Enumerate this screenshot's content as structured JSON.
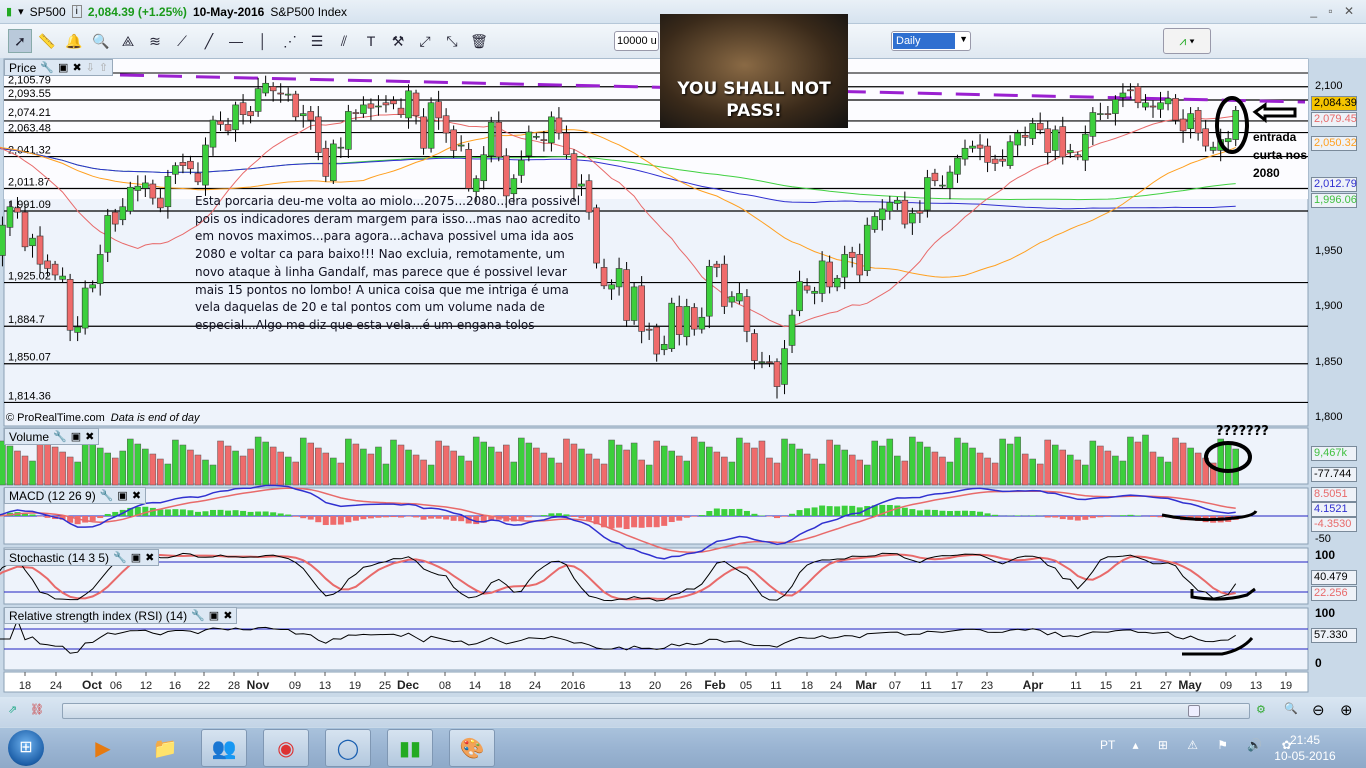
{
  "header": {
    "symbol": "SP500",
    "last_change": "2,084.39 (+1.25%)",
    "date": "10-May-2016",
    "name": "S&P500 Index"
  },
  "toolbar": {
    "tools": [
      "pointer-icon",
      "ruler-icon",
      "alarm-bell-icon",
      "zoom-icon",
      "fibonacci-fan-icon",
      "channel-icon",
      "segment-icon",
      "line-icon",
      "horizontal-line-icon",
      "vertical-line-icon",
      "fan-icon",
      "fibonacci-retracement-icon",
      "trend-channel-icon",
      "text-icon",
      "tools-icon",
      "point-line-icon",
      "parallel-icon",
      "trash-icon"
    ],
    "quantity": "10000 u",
    "timeframe": "Daily",
    "indicator_button": "indicators"
  },
  "meme": {
    "text_line1": "YOU SHALL NOT",
    "text_line2": "PASS!"
  },
  "annotation": {
    "main": "Esta porcaria deu-me volta ao miolo...2075...2080...era possivel pois os indicadores deram margem para isso...mas nao acredito em novos maximos...para agora...achava possivel uma ida aos 2080 e voltar ca para baixo!!! Nao excluia, remotamente, um novo ataque à linha Gandalf, mas parece que é possivel levar mais 15 pontos no lombo! A unica coisa que me intriga é uma vela daquelas de 20 e tal pontos com um volume nada de especial...Algo me diz que esta vela...é um engana tolos",
    "side": "entrada curta nos 2080",
    "volume_mark": "???????"
  },
  "panes": {
    "price": {
      "title": "Price",
      "copyright": "© ProRealTime.com",
      "eod": "Data is end of day",
      "levels": [
        "2,105.79",
        "2,093.55",
        "2,074.21",
        "2,063.48",
        "2,041.32",
        "2,011.87",
        "1,991.09",
        "1,925.02",
        "1,884.7",
        "1,850.07",
        "1,814.36"
      ],
      "axis": [
        "2,100",
        "1,950",
        "1,900",
        "1,850",
        "1,800"
      ],
      "badges": {
        "last": "2,084.39",
        "ma_red": "2,079.45",
        "ma_orange": "2,050.32",
        "ma_blue": "2,012.79",
        "ma_green": "1,996.06"
      }
    },
    "volume": {
      "title": "Volume",
      "last": "9,467k",
      "other": "-77.744"
    },
    "macd": {
      "title": "MACD (12 26 9)",
      "v1": "8.5051",
      "v2": "4.1521",
      "v3": "-4.3530",
      "axis": "-50"
    },
    "stochastic": {
      "title": "Stochastic (14 3 5)",
      "top": "100",
      "k": "40.479",
      "d": "22.256"
    },
    "rsi": {
      "title": "Relative strength index (RSI) (14)",
      "top": "100",
      "value": "57.330",
      "bottom": "0"
    }
  },
  "colors": {
    "up": "#3ccf3c",
    "down": "#ef6b6b",
    "ma_red": "#e86a6a",
    "ma_orange": "#ffa020",
    "ma_blue": "#3030d0",
    "ma_green": "#40d040",
    "trendline": "#9a20d0"
  },
  "chart_data": {
    "type": "candlestick",
    "first_date": "2015-09-14",
    "last_date": "2016-05-10",
    "ylim": [
      1800,
      2110
    ],
    "closes": [
      1953,
      1978,
      1995,
      1990,
      1958,
      1966,
      1942,
      1938,
      1932,
      1931,
      1881,
      1884,
      1920,
      1923,
      1951,
      1987,
      1979,
      1995,
      2013,
      2014,
      2017,
      2003,
      1994,
      2023,
      2033,
      2033,
      2030,
      2018,
      2052,
      2075,
      2071,
      2065,
      2089,
      2080,
      2079,
      2104,
      2109,
      2102,
      2099,
      2099,
      2078,
      2081,
      2075,
      2045,
      2023,
      2053,
      2050,
      2083,
      2081,
      2089,
      2086,
      2088,
      2089,
      2090,
      2080,
      2102,
      2079,
      2049,
      2091,
      2077,
      2063,
      2047,
      2052,
      2012,
      2021,
      2043,
      2073,
      2041,
      2005,
      2021,
      2038,
      2064,
      2060,
      2056,
      2078,
      2063,
      2043,
      2012,
      2016,
      1990,
      1943,
      1922,
      1923,
      1938,
      1890,
      1921,
      1880,
      1881,
      1859,
      1868,
      1906,
      1877,
      1903,
      1882,
      1893,
      1940,
      1939,
      1903,
      1912,
      1915,
      1880,
      1853,
      1852,
      1851,
      1829,
      1864,
      1895,
      1926,
      1918,
      1917,
      1945,
      1921,
      1929,
      1951,
      1948,
      1932,
      1978,
      1986,
      1993,
      1999,
      2001,
      1979,
      1989,
      1989,
      2022,
      2019,
      2015,
      2027,
      2040,
      2049,
      2051,
      2049,
      2036,
      2035,
      2037,
      2055,
      2063,
      2059,
      2072,
      2066,
      2045,
      2066,
      2041,
      2047,
      2041,
      2062,
      2082,
      2081,
      2080,
      2094,
      2100,
      2102,
      2091,
      2091,
      2087,
      2091,
      2095,
      2075,
      2065,
      2081,
      2063,
      2051,
      2050,
      2057,
      2058,
      2084
    ],
    "x_ticks": [
      "18",
      "24",
      "Oct",
      "06",
      "12",
      "16",
      "22",
      "28",
      "Nov",
      "09",
      "13",
      "19",
      "25",
      "Dec",
      "08",
      "14",
      "18",
      "24",
      "2016",
      "13",
      "20",
      "26",
      "Feb",
      "05",
      "11",
      "18",
      "24",
      "Mar",
      "07",
      "11",
      "17",
      "23",
      "Apr",
      "11",
      "15",
      "21",
      "27",
      "May",
      "09",
      "13",
      "19"
    ]
  },
  "taskbar": {
    "apps": [
      "media-player-icon",
      "file-explorer-icon",
      "messenger-icon",
      "chrome-icon",
      "app-circle-icon",
      "prorealtime-icon",
      "paint-icon"
    ],
    "lang": "PT",
    "time": "21:45",
    "date": "10-05-2016"
  }
}
